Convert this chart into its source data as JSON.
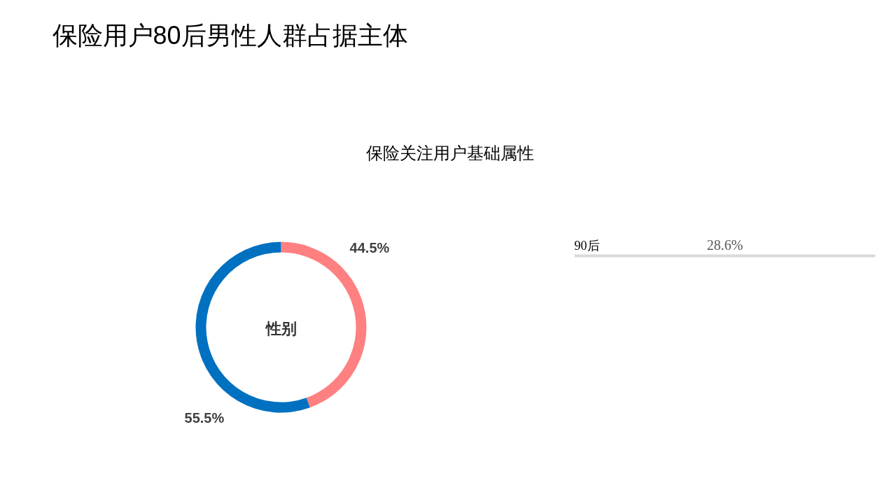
{
  "chart_data": [
    {
      "type": "donut",
      "title": "保险用户80后男性人群占据主体",
      "subtitle": "保险关注用户基础属性",
      "categories": [
        null,
        null
      ],
      "values": [
        44.5,
        55.5
      ],
      "colors": [
        "#ff8080",
        "#0070c0"
      ],
      "value_labels": [
        "44.5%",
        "55.5%"
      ],
      "annotations": [
        "性别"
      ]
    },
    {
      "type": "bar",
      "orientation": "horizontal",
      "categories": [
        "90后"
      ],
      "values": [
        28.6
      ],
      "color": "#d9d9d9",
      "value_labels": [
        "28.6%"
      ]
    }
  ]
}
